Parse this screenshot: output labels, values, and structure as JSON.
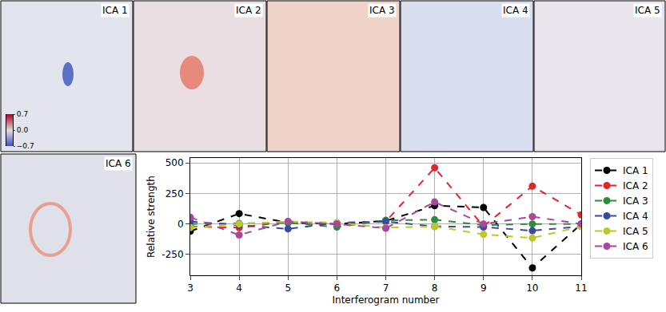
{
  "panels": {
    "labels": [
      "ICA 1",
      "ICA 2",
      "ICA 3",
      "ICA 4",
      "ICA 5",
      "ICA 6"
    ],
    "colorbar": {
      "range": [
        -0.7,
        0.7
      ],
      "ticks": [
        0.7,
        {
          "value": 0,
          "label": "0.0"
        },
        {
          "value": -0.7,
          "label": "−0.7"
        }
      ]
    }
  },
  "chart_data": {
    "type": "line",
    "x_label": "Interferogram number",
    "y_label": "Relative strength",
    "x": [
      3,
      4,
      5,
      6,
      7,
      8,
      9,
      10,
      11
    ],
    "xlim": [
      3,
      11
    ],
    "xticks": [
      3,
      4,
      5,
      6,
      7,
      8,
      9,
      10,
      11
    ],
    "ylim": [
      -420,
      540
    ],
    "yticks": [
      -250,
      0,
      250,
      500
    ],
    "grid": true,
    "legend": "right",
    "series": [
      {
        "name": "ICA 1",
        "color": "#000000",
        "marker": "circle",
        "line_style": "dash",
        "values": [
          -60,
          85,
          10,
          0,
          25,
          150,
          135,
          -360,
          0
        ]
      },
      {
        "name": "ICA 2",
        "color": "#e3242b",
        "marker": "circle",
        "line_style": "dash",
        "values": [
          -20,
          -30,
          20,
          0,
          20,
          460,
          -20,
          310,
          75
        ]
      },
      {
        "name": "ICA 3",
        "color": "#2e8b3e",
        "marker": "circle",
        "line_style": "dash",
        "values": [
          0,
          5,
          10,
          -25,
          30,
          35,
          -10,
          0,
          0
        ]
      },
      {
        "name": "ICA 4",
        "color": "#3a4a9c",
        "marker": "circle",
        "line_style": "dash",
        "values": [
          20,
          -10,
          -40,
          10,
          20,
          -20,
          -25,
          -55,
          -20
        ]
      },
      {
        "name": "ICA 5",
        "color": "#bcc82a",
        "marker": "circle",
        "line_style": "dash",
        "values": [
          -30,
          0,
          20,
          10,
          -30,
          -20,
          -85,
          -115,
          -20
        ]
      },
      {
        "name": "ICA 6",
        "color": "#a8479c",
        "marker": "circle",
        "line_style": "dash",
        "values": [
          55,
          -90,
          20,
          0,
          -35,
          180,
          0,
          60,
          0
        ]
      }
    ]
  }
}
